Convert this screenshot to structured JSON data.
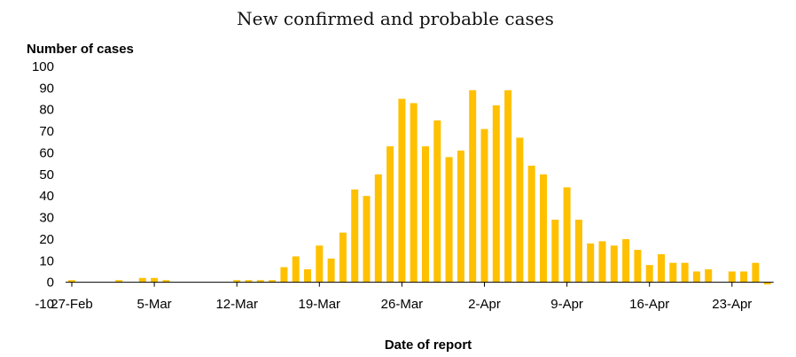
{
  "chart_data": {
    "type": "bar",
    "title": "New confirmed and probable cases",
    "ylabel": "Number of cases",
    "xlabel": "Date of report",
    "ylim": [
      -10,
      100
    ],
    "yticks": [
      -10,
      0,
      10,
      20,
      30,
      40,
      50,
      60,
      70,
      80,
      90,
      100
    ],
    "x_tick_labels": [
      "27-Feb",
      "5-Mar",
      "12-Mar",
      "19-Mar",
      "26-Mar",
      "2-Apr",
      "9-Apr",
      "16-Apr",
      "23-Apr"
    ],
    "bar_color": "#FFC000",
    "grid": false,
    "legend": "none",
    "categories": [
      "27-Feb",
      "28-Feb",
      "29-Feb",
      "1-Mar",
      "2-Mar",
      "3-Mar",
      "4-Mar",
      "5-Mar",
      "6-Mar",
      "7-Mar",
      "8-Mar",
      "9-Mar",
      "10-Mar",
      "11-Mar",
      "12-Mar",
      "13-Mar",
      "14-Mar",
      "15-Mar",
      "16-Mar",
      "17-Mar",
      "18-Mar",
      "19-Mar",
      "20-Mar",
      "21-Mar",
      "22-Mar",
      "23-Mar",
      "24-Mar",
      "25-Mar",
      "26-Mar",
      "27-Mar",
      "28-Mar",
      "29-Mar",
      "30-Mar",
      "31-Mar",
      "1-Apr",
      "2-Apr",
      "3-Apr",
      "4-Apr",
      "5-Apr",
      "6-Apr",
      "7-Apr",
      "8-Apr",
      "9-Apr",
      "10-Apr",
      "11-Apr",
      "12-Apr",
      "13-Apr",
      "14-Apr",
      "15-Apr",
      "16-Apr",
      "17-Apr",
      "18-Apr",
      "19-Apr",
      "20-Apr",
      "21-Apr",
      "22-Apr",
      "23-Apr",
      "24-Apr",
      "25-Apr",
      "26-Apr"
    ],
    "values": [
      1,
      0,
      0,
      0,
      1,
      0,
      2,
      2,
      1,
      0,
      0,
      0,
      0,
      0,
      1,
      1,
      1,
      1,
      7,
      12,
      6,
      17,
      11,
      23,
      43,
      40,
      50,
      63,
      85,
      83,
      63,
      75,
      58,
      61,
      89,
      71,
      82,
      89,
      67,
      54,
      50,
      29,
      44,
      29,
      18,
      19,
      17,
      20,
      15,
      8,
      13,
      9,
      9,
      5,
      6,
      0,
      5,
      5,
      9,
      -1
    ]
  }
}
